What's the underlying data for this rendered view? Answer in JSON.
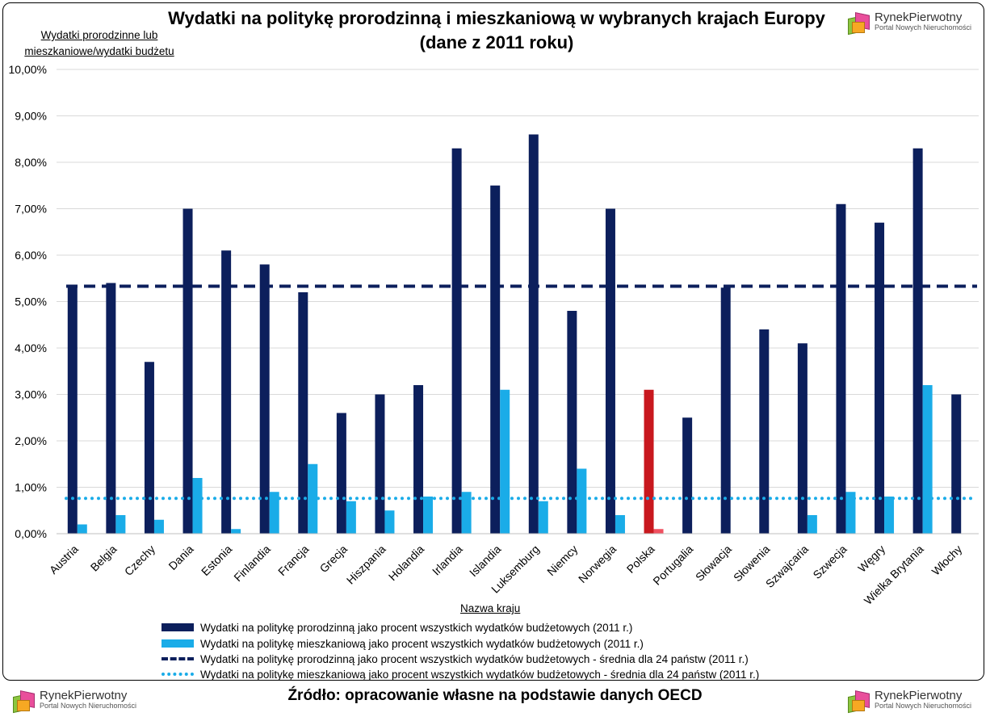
{
  "logo": {
    "name_a": "Rynek",
    "name_b": "Pierwotny",
    "subtitle": "Portal Nowych Nieruchomości"
  },
  "chart_data": {
    "type": "bar",
    "title_line1": "Wydatki na politykę prorodzinną i mieszkaniową w wybranych krajach Europy",
    "title_line2": "(dane z 2011 roku)",
    "ylabel_line1": "Wydatki prorodzinne lub",
    "ylabel_line2": "mieszkaniowe/wydatki budżetu",
    "xlabel": "Nazwa kraju",
    "ylim": [
      0,
      10
    ],
    "yticks": [
      "0,00%",
      "1,00%",
      "2,00%",
      "3,00%",
      "4,00%",
      "5,00%",
      "6,00%",
      "7,00%",
      "8,00%",
      "9,00%",
      "10,00%"
    ],
    "categories": [
      "Austria",
      "Belgia",
      "Czechy",
      "Dania",
      "Estonia",
      "Finlandia",
      "Francja",
      "Grecja",
      "Hiszpania",
      "Holandia",
      "Irlandia",
      "Islandia",
      "Luksemburg",
      "Niemcy",
      "Norwegia",
      "Polska",
      "Portugalia",
      "Słowacja",
      "Słowenia",
      "Szwajcaria",
      "Szwecja",
      "Węgry",
      "Wielka Brytania",
      "Włochy"
    ],
    "series": [
      {
        "name": "Wydatki na politykę prorodzinną jako procent wszystkich wydatków budżetowych (2011 r.)",
        "color": "#0c1f5c",
        "highlight_color": "#c8181e",
        "highlight_category": "Polska",
        "values": [
          5.3,
          5.4,
          3.7,
          7.0,
          6.1,
          5.8,
          5.2,
          2.6,
          3.0,
          3.2,
          8.3,
          7.5,
          8.6,
          4.8,
          7.0,
          3.1,
          2.5,
          5.3,
          4.4,
          4.1,
          7.1,
          6.7,
          8.3,
          3.0
        ]
      },
      {
        "name": "Wydatki na politykę mieszkaniową jako procent wszystkich wydatków budżetowych (2011 r.)",
        "color": "#1aace8",
        "highlight_color": "#f05060",
        "highlight_category": "Polska",
        "values": [
          0.2,
          0.4,
          0.3,
          1.2,
          0.1,
          0.9,
          1.5,
          0.7,
          0.5,
          0.8,
          0.9,
          3.1,
          0.7,
          1.4,
          0.4,
          0.1,
          0,
          0,
          0,
          0.4,
          0.9,
          0.8,
          3.2,
          0
        ]
      }
    ],
    "reference_lines": [
      {
        "name": "Wydatki na politykę prorodzinną jako procent wszystkich wydatków budżetowych - średnia dla 24 państw (2011 r.)",
        "value": 5.33,
        "color": "#0c1f5c",
        "style": "dashed"
      },
      {
        "name": "Wydatki na politykę mieszkaniową jako procent wszystkich wydatków budżetowych - średnia dla 24 państw (2011 r.)",
        "value": 0.76,
        "color": "#1aace8",
        "style": "dotted"
      }
    ],
    "grid": true,
    "legend_position": "bottom",
    "source": "Źródło: opracowanie własne na podstawie danych OECD"
  }
}
